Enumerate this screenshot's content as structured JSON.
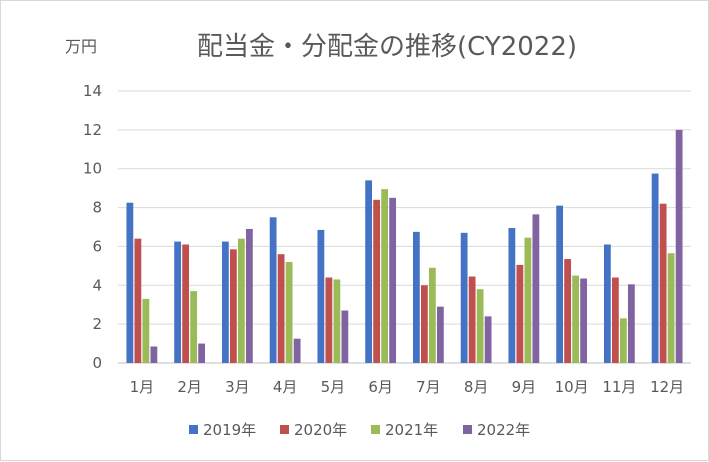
{
  "chart_data": {
    "type": "bar",
    "title": "配当金・分配金の推移(CY2022)",
    "unit_label": "万円",
    "categories": [
      "1月",
      "2月",
      "3月",
      "4月",
      "5月",
      "6月",
      "7月",
      "8月",
      "9月",
      "10月",
      "11月",
      "12月"
    ],
    "ylim": [
      0,
      14
    ],
    "yticks": [
      0,
      2,
      4,
      6,
      8,
      10,
      12,
      14
    ],
    "grid": true,
    "legend_position": "bottom",
    "series": [
      {
        "name": "2019年",
        "color": "#4472c4",
        "values": [
          8.25,
          6.25,
          6.25,
          7.5,
          6.85,
          9.4,
          6.75,
          6.7,
          6.95,
          8.1,
          6.1,
          9.75
        ]
      },
      {
        "name": "2020年",
        "color": "#c0504d",
        "values": [
          6.4,
          6.1,
          5.85,
          5.6,
          4.4,
          8.4,
          4.0,
          4.45,
          5.05,
          5.35,
          4.4,
          8.2
        ]
      },
      {
        "name": "2021年",
        "color": "#9bbb59",
        "values": [
          3.3,
          3.7,
          6.4,
          5.2,
          4.3,
          8.95,
          4.9,
          3.8,
          6.45,
          4.5,
          2.3,
          5.65
        ]
      },
      {
        "name": "2022年",
        "color": "#8064a2",
        "values": [
          0.85,
          1.0,
          6.9,
          1.25,
          2.7,
          8.5,
          2.9,
          2.4,
          7.65,
          4.35,
          4.05,
          12.0
        ]
      }
    ]
  }
}
